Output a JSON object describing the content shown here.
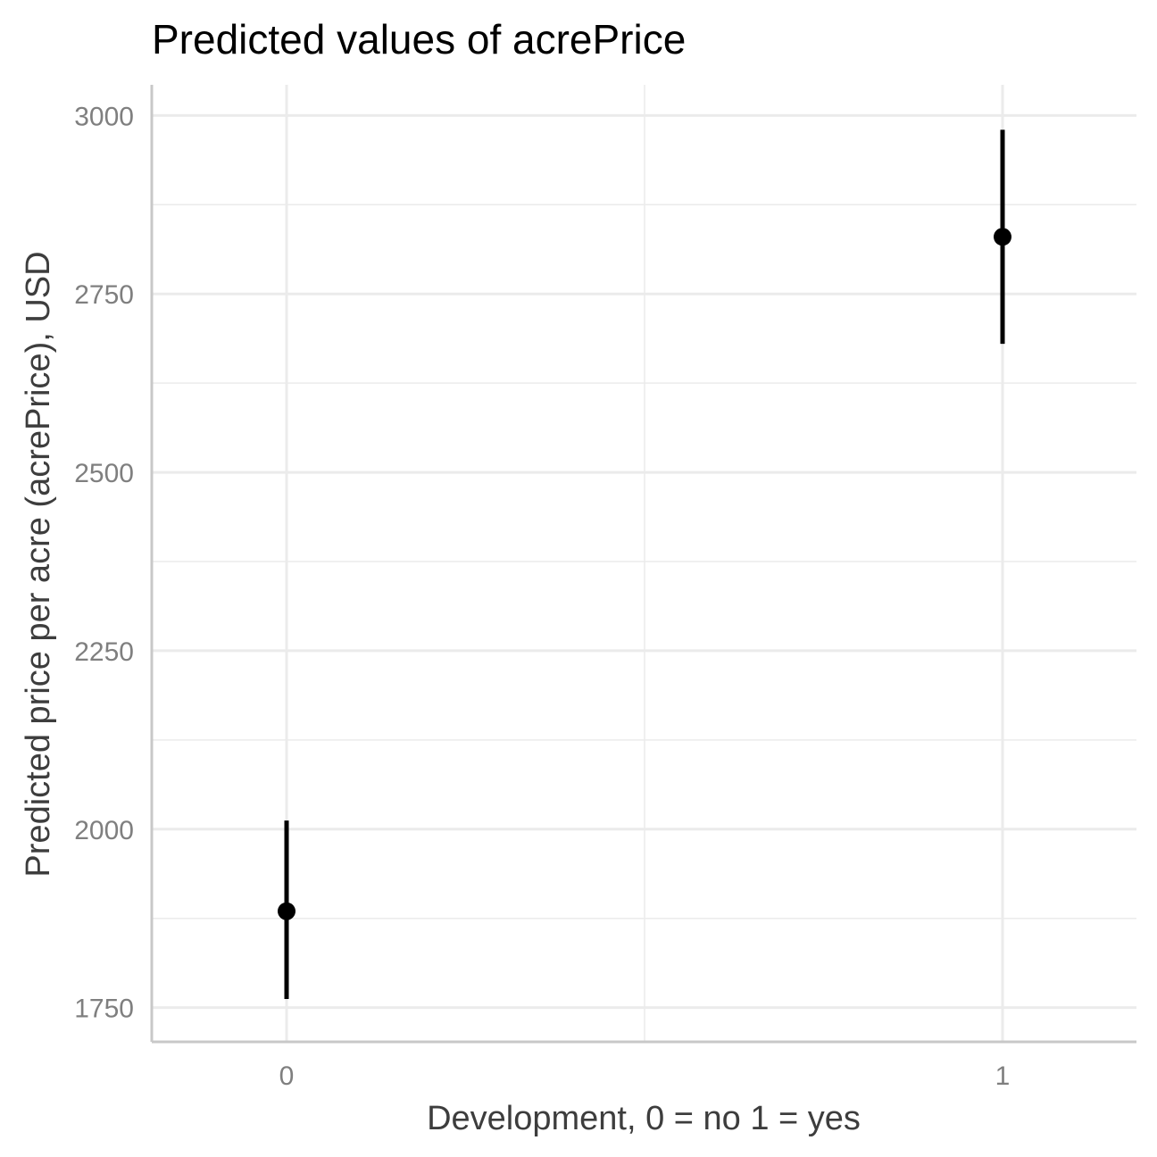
{
  "chart_data": {
    "type": "scatter",
    "title": "Predicted values of acrePrice",
    "xlabel": "Development, 0 = no 1 = yes",
    "ylabel": "Predicted price per acre (acrePrice), USD",
    "categories": [
      "0",
      "1"
    ],
    "series": [
      {
        "points": [
          {
            "x": "0",
            "y": 1885,
            "ci_low": 1762,
            "ci_high": 2012
          },
          {
            "x": "1",
            "y": 2830,
            "ci_low": 2680,
            "ci_high": 2980
          }
        ]
      }
    ],
    "ylim": [
      1702,
      3043
    ],
    "y_ticks": [
      1750,
      2000,
      2250,
      2500,
      2750,
      3000
    ],
    "grid": true,
    "colors": {
      "point": "#000000",
      "errorbar": "#000000",
      "grid": "#ebebeb",
      "axis_line": "#c8c8c8",
      "tick_label": "#7f7f7f"
    }
  }
}
